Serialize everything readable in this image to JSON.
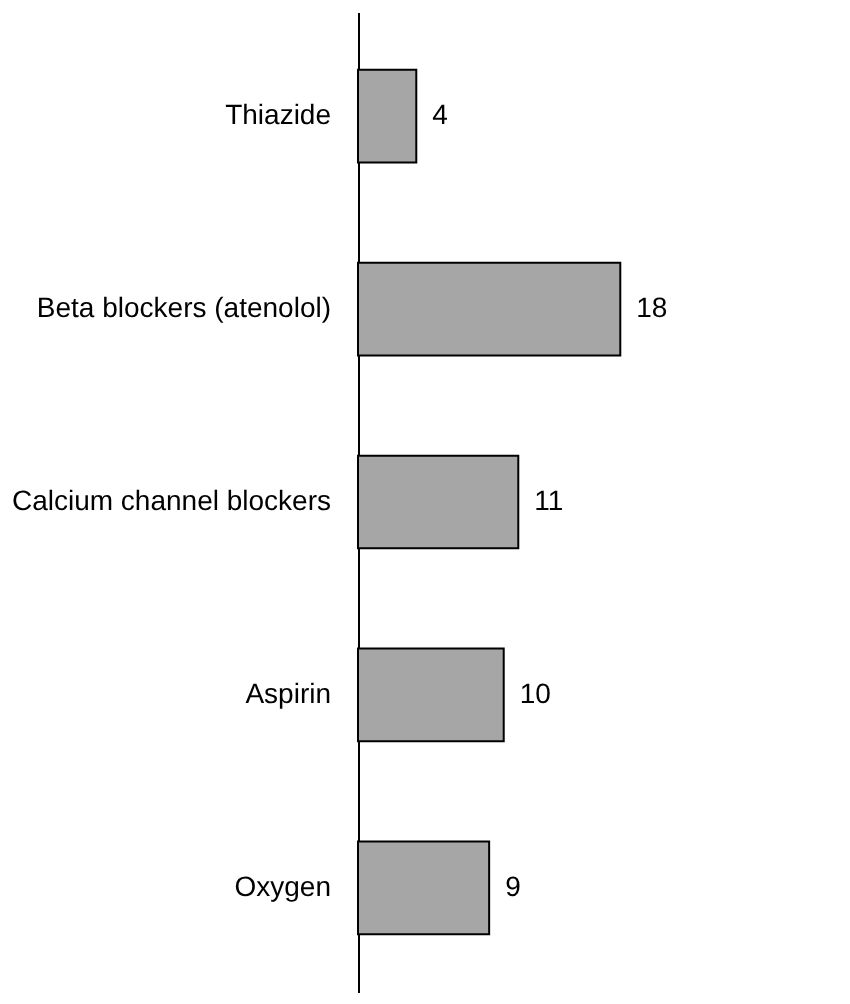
{
  "chart_data": {
    "type": "bar",
    "orientation": "horizontal",
    "categories": [
      "Thiazide",
      "Beta blockers (atenolol)",
      "Calcium channel blockers",
      "Aspirin",
      "Oxygen"
    ],
    "values": [
      4,
      18,
      11,
      10,
      9
    ],
    "color": "#a6a6a6",
    "data_labels": true
  }
}
